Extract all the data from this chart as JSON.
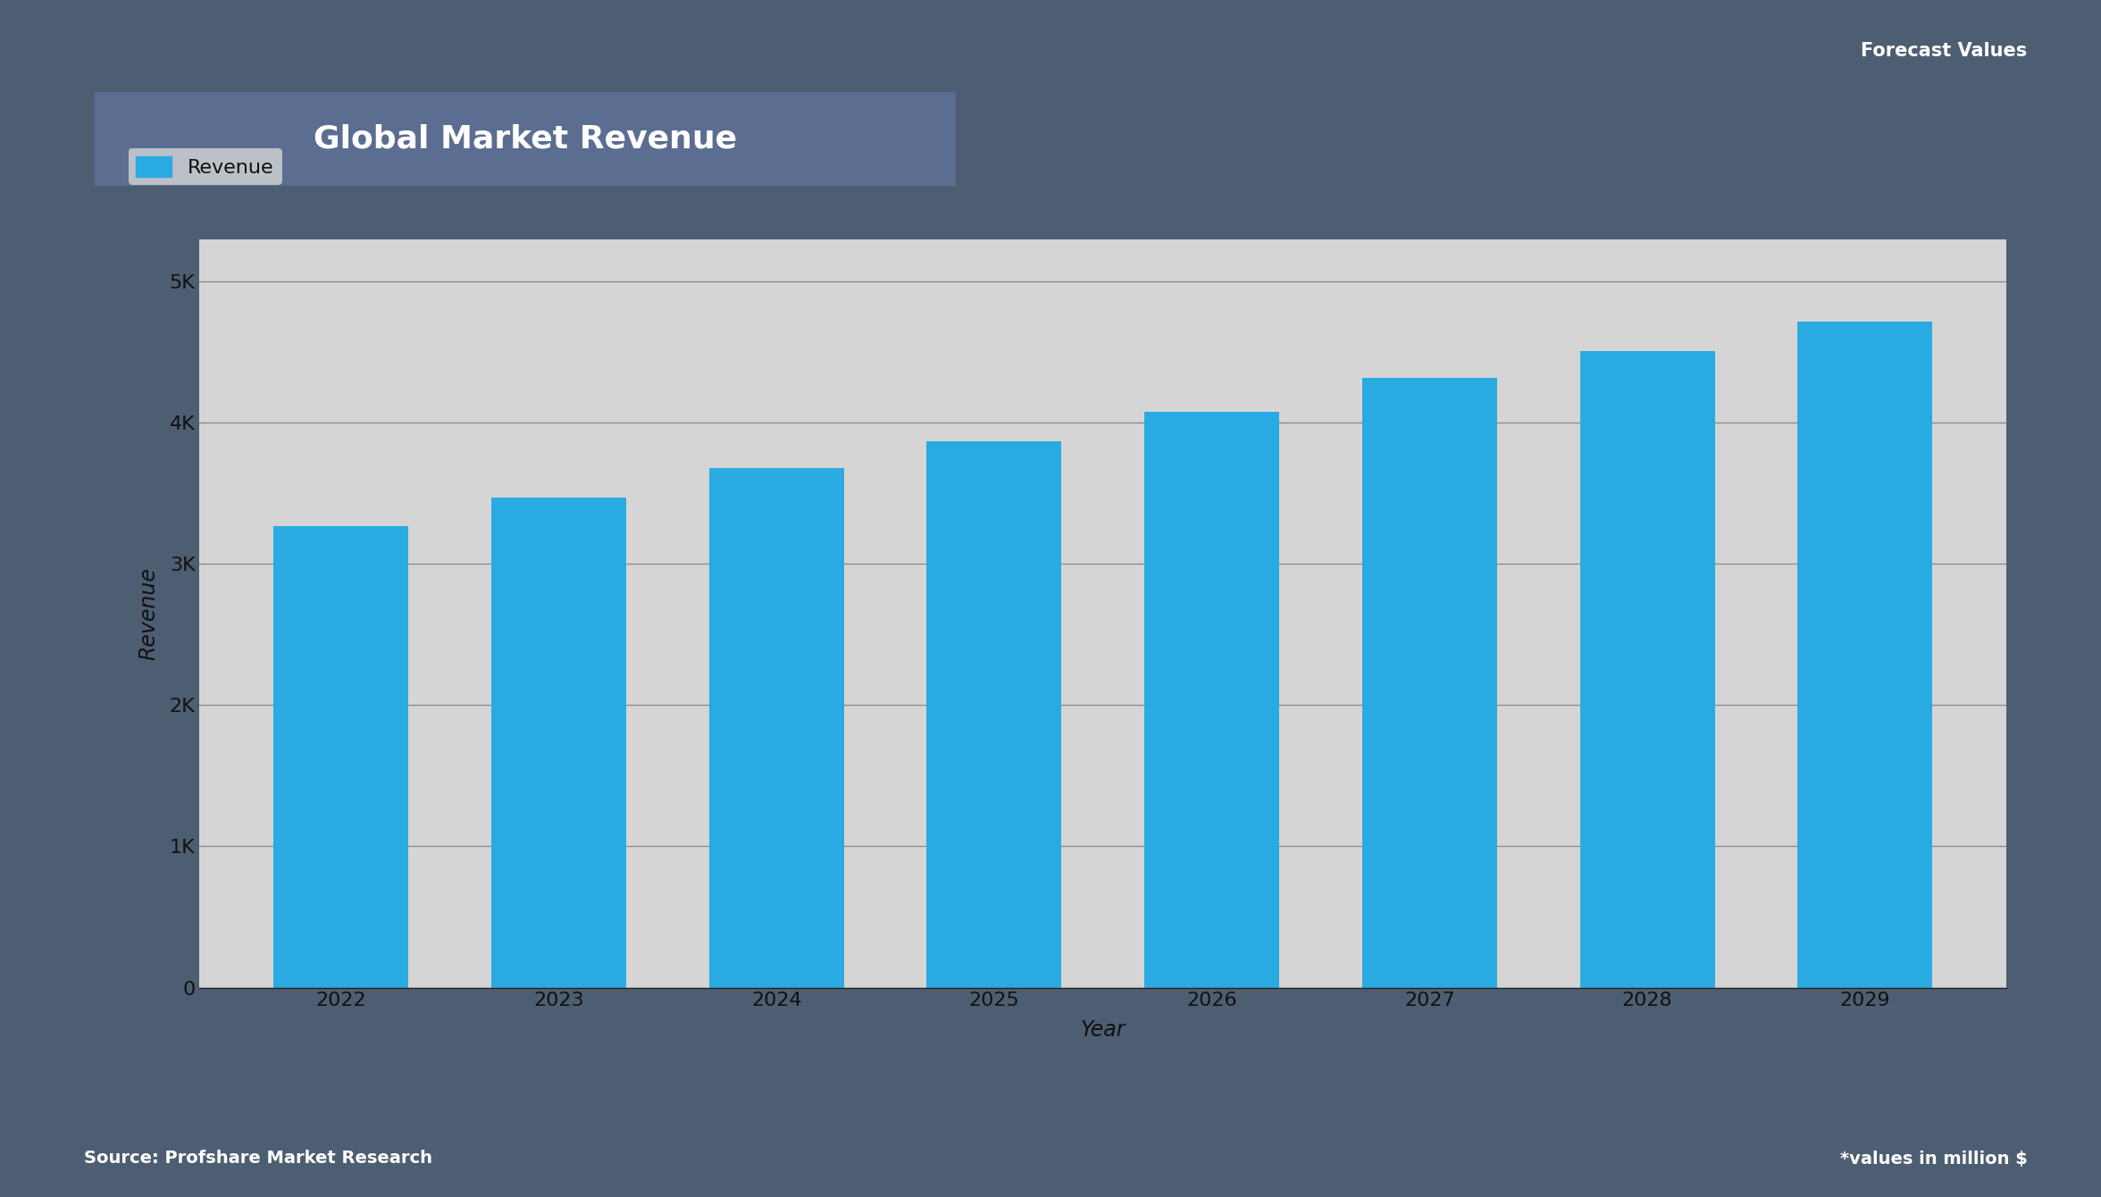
{
  "title": "Global Market Revenue",
  "xlabel": "Year",
  "ylabel": "Revenue",
  "bar_color": "#29ABE2",
  "legend_label": "Revenue",
  "years": [
    2022,
    2023,
    2024,
    2025,
    2026,
    2027,
    2028,
    2029
  ],
  "values": [
    3270,
    3470,
    3680,
    3870,
    4080,
    4320,
    4510,
    4720
  ],
  "ylim": [
    0,
    5300
  ],
  "yticks": [
    0,
    1000,
    2000,
    3000,
    4000,
    5000
  ],
  "ytick_labels": [
    "0",
    "1K",
    "2K",
    "3K",
    "4K",
    "5K"
  ],
  "background_color": "#D5D5D5",
  "outer_bg_color": "#4E5E72",
  "title_bg_color": "#5B6E91",
  "title_text_color": "#FFFFFF",
  "axis_text_color": "#111111",
  "grid_color": "#888888",
  "border_color": "#222222",
  "footer_text_left": "Source: Profshare Market Research",
  "footer_text_right": "*values in million $",
  "forecast_label": "Forecast Values",
  "title_fontsize": 26,
  "label_fontsize": 17,
  "tick_fontsize": 16,
  "legend_fontsize": 16,
  "footer_fontsize": 14,
  "forecast_fontsize": 15
}
